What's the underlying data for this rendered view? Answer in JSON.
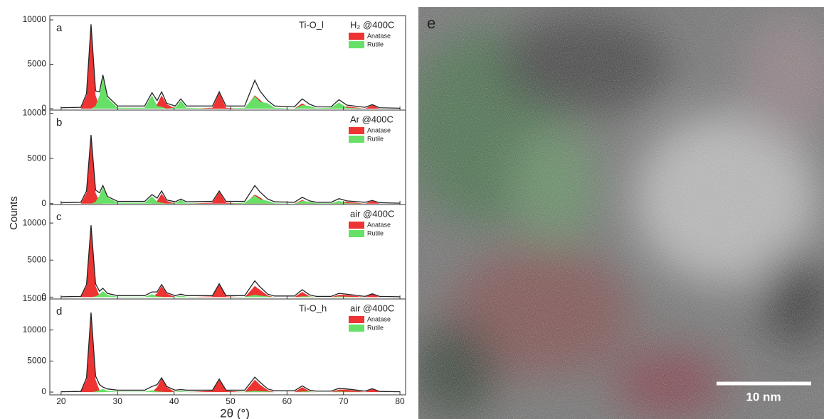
{
  "figure": {
    "y_label": "Counts",
    "x_label": "2θ (°)",
    "xlim": [
      18,
      81
    ],
    "xticks": [
      20,
      30,
      40,
      50,
      60,
      70,
      80
    ]
  },
  "chart_data": [
    {
      "type": "area",
      "label": "a",
      "sample": "Ti-O_l",
      "condition": "H₂ @400C",
      "x": [
        20,
        23.5,
        24.5,
        25.3,
        26.1,
        26.8,
        27.4,
        28.2,
        30,
        34.8,
        36.1,
        37,
        37.8,
        38.7,
        40.2,
        41.2,
        42.2,
        46.8,
        48.0,
        49.2,
        52.5,
        54.3,
        55.2,
        56.6,
        57.8,
        61.3,
        62.7,
        64.0,
        65.2,
        67.8,
        69.2,
        70.6,
        73.8,
        75.1,
        76.4,
        80
      ],
      "ylim": [
        -160,
        10480
      ],
      "yticks": [
        0,
        5000,
        10000
      ],
      "series": [
        {
          "name": "Anatase",
          "color": "#ee3333",
          "values": [
            0,
            0,
            1500,
            9000,
            1500,
            200,
            0,
            0,
            0,
            0,
            0,
            500,
            1500,
            500,
            0,
            0,
            0,
            100,
            1800,
            100,
            0,
            1500,
            1000,
            200,
            0,
            0,
            600,
            100,
            0,
            0,
            250,
            250,
            0,
            400,
            0,
            0
          ]
        },
        {
          "name": "Rutile",
          "color": "#66e066",
          "values": [
            0,
            0,
            0,
            0,
            300,
            1500,
            3500,
            1200,
            100,
            100,
            1500,
            300,
            200,
            0,
            100,
            900,
            100,
            0,
            0,
            0,
            100,
            1400,
            800,
            600,
            100,
            0,
            400,
            300,
            50,
            100,
            700,
            100,
            0,
            0,
            0,
            0
          ]
        }
      ],
      "observed": {
        "color": "#222222",
        "values": [
          100,
          150,
          1700,
          9500,
          2000,
          1900,
          3800,
          1400,
          300,
          300,
          1800,
          900,
          1900,
          600,
          300,
          1100,
          300,
          300,
          1900,
          300,
          300,
          3200,
          2000,
          900,
          300,
          200,
          1100,
          500,
          200,
          200,
          1000,
          400,
          150,
          450,
          100,
          50
        ]
      }
    },
    {
      "type": "area",
      "label": "b",
      "condition": "Ar @400C",
      "x": [
        20,
        23.5,
        24.5,
        25.3,
        26.1,
        26.8,
        27.4,
        28.2,
        30,
        34.8,
        36.1,
        37,
        37.8,
        38.7,
        40.2,
        41.2,
        42.2,
        46.8,
        48.0,
        49.2,
        52.5,
        54.3,
        55.2,
        56.6,
        57.8,
        61.3,
        62.7,
        64.0,
        65.2,
        67.8,
        69.2,
        70.6,
        73.8,
        75.1,
        76.4,
        80
      ],
      "ylim": [
        -100,
        10350
      ],
      "yticks": [
        0,
        5000,
        10000
      ],
      "series": [
        {
          "name": "Anatase",
          "color": "#ee3333",
          "values": [
            0,
            0,
            1200,
            7200,
            1200,
            200,
            0,
            0,
            0,
            0,
            0,
            300,
            1100,
            300,
            0,
            0,
            0,
            100,
            1300,
            100,
            0,
            1000,
            700,
            100,
            0,
            0,
            400,
            50,
            0,
            0,
            200,
            200,
            0,
            300,
            0,
            0
          ]
        },
        {
          "name": "Rutile",
          "color": "#66e066",
          "values": [
            0,
            0,
            0,
            0,
            200,
            900,
            1800,
            700,
            100,
            100,
            800,
            200,
            100,
            0,
            50,
            400,
            50,
            0,
            0,
            0,
            100,
            900,
            500,
            300,
            50,
            0,
            300,
            200,
            50,
            50,
            300,
            50,
            0,
            0,
            0,
            0
          ]
        }
      ],
      "observed": {
        "color": "#222222",
        "values": [
          100,
          150,
          1400,
          7600,
          1500,
          1200,
          2000,
          800,
          250,
          250,
          1000,
          600,
          1400,
          400,
          200,
          500,
          200,
          250,
          1400,
          250,
          250,
          2000,
          1300,
          500,
          200,
          150,
          700,
          300,
          150,
          150,
          550,
          300,
          150,
          350,
          100,
          50
        ]
      }
    },
    {
      "type": "area",
      "label": "c",
      "condition": "air @400C",
      "x": [
        20,
        23.5,
        24.5,
        25.3,
        26.1,
        26.8,
        27.4,
        28.2,
        30,
        34.8,
        36.1,
        37,
        37.8,
        38.7,
        40.2,
        41.2,
        42.2,
        46.8,
        48.0,
        49.2,
        52.5,
        54.3,
        55.2,
        56.6,
        57.8,
        61.3,
        62.7,
        64.0,
        65.2,
        67.8,
        69.2,
        70.6,
        73.8,
        75.1,
        76.4,
        80
      ],
      "ylim": [
        -250,
        12500
      ],
      "yticks": [
        0,
        5000,
        10000
      ],
      "series": [
        {
          "name": "Anatase",
          "color": "#ee3333",
          "values": [
            0,
            0,
            1500,
            9300,
            1500,
            200,
            0,
            0,
            0,
            0,
            0,
            500,
            1500,
            500,
            0,
            0,
            0,
            100,
            1700,
            100,
            0,
            1500,
            1000,
            200,
            0,
            0,
            700,
            100,
            0,
            0,
            300,
            300,
            0,
            400,
            0,
            0
          ]
        },
        {
          "name": "Rutile",
          "color": "#66e066",
          "values": [
            0,
            0,
            0,
            0,
            100,
            400,
            800,
            300,
            50,
            50,
            400,
            100,
            50,
            0,
            50,
            200,
            50,
            0,
            0,
            0,
            50,
            300,
            200,
            100,
            0,
            0,
            100,
            100,
            0,
            0,
            100,
            50,
            0,
            0,
            0,
            0
          ]
        }
      ],
      "observed": {
        "color": "#222222",
        "values": [
          50,
          100,
          1700,
          9700,
          1800,
          800,
          1200,
          500,
          200,
          200,
          700,
          700,
          1700,
          600,
          200,
          400,
          200,
          200,
          1800,
          200,
          200,
          2200,
          1400,
          400,
          150,
          150,
          1000,
          300,
          100,
          100,
          500,
          400,
          100,
          450,
          100,
          50
        ]
      }
    },
    {
      "type": "area",
      "label": "d",
      "sample": "Ti-O_h",
      "condition": "air @400C",
      "x": [
        20,
        23.5,
        24.5,
        25.3,
        26.1,
        26.8,
        27.4,
        28.2,
        30,
        34.8,
        36.1,
        37,
        37.8,
        38.7,
        40.2,
        41.2,
        42.2,
        46.8,
        48.0,
        49.2,
        52.5,
        54.3,
        55.2,
        56.6,
        57.8,
        61.3,
        62.7,
        64.0,
        65.2,
        67.8,
        69.2,
        70.6,
        73.8,
        75.1,
        76.4,
        80
      ],
      "ylim": [
        -450,
        15000
      ],
      "yticks": [
        0,
        5000,
        10000,
        15000
      ],
      "series": [
        {
          "name": "Anatase",
          "color": "#ee3333",
          "values": [
            0,
            0,
            2000,
            12000,
            2000,
            300,
            0,
            0,
            0,
            0,
            0,
            800,
            2200,
            800,
            0,
            0,
            0,
            200,
            2000,
            200,
            0,
            2000,
            1200,
            300,
            0,
            0,
            800,
            100,
            0,
            0,
            400,
            400,
            0,
            500,
            0,
            0
          ]
        },
        {
          "name": "Rutile",
          "color": "#66e066",
          "values": [
            0,
            0,
            0,
            0,
            100,
            300,
            500,
            200,
            50,
            50,
            300,
            100,
            50,
            0,
            50,
            150,
            50,
            0,
            0,
            0,
            50,
            200,
            150,
            100,
            0,
            0,
            100,
            100,
            0,
            0,
            100,
            50,
            0,
            0,
            0,
            0
          ]
        }
      ],
      "observed": {
        "color": "#222222",
        "values": [
          50,
          100,
          2300,
          12800,
          2600,
          1200,
          800,
          500,
          300,
          300,
          900,
          1200,
          2300,
          900,
          300,
          400,
          300,
          300,
          2100,
          300,
          300,
          2400,
          1600,
          500,
          200,
          200,
          1000,
          300,
          150,
          150,
          600,
          500,
          150,
          550,
          100,
          50
        ]
      }
    }
  ],
  "image": {
    "label": "e",
    "scale_bar": "10 nm"
  }
}
